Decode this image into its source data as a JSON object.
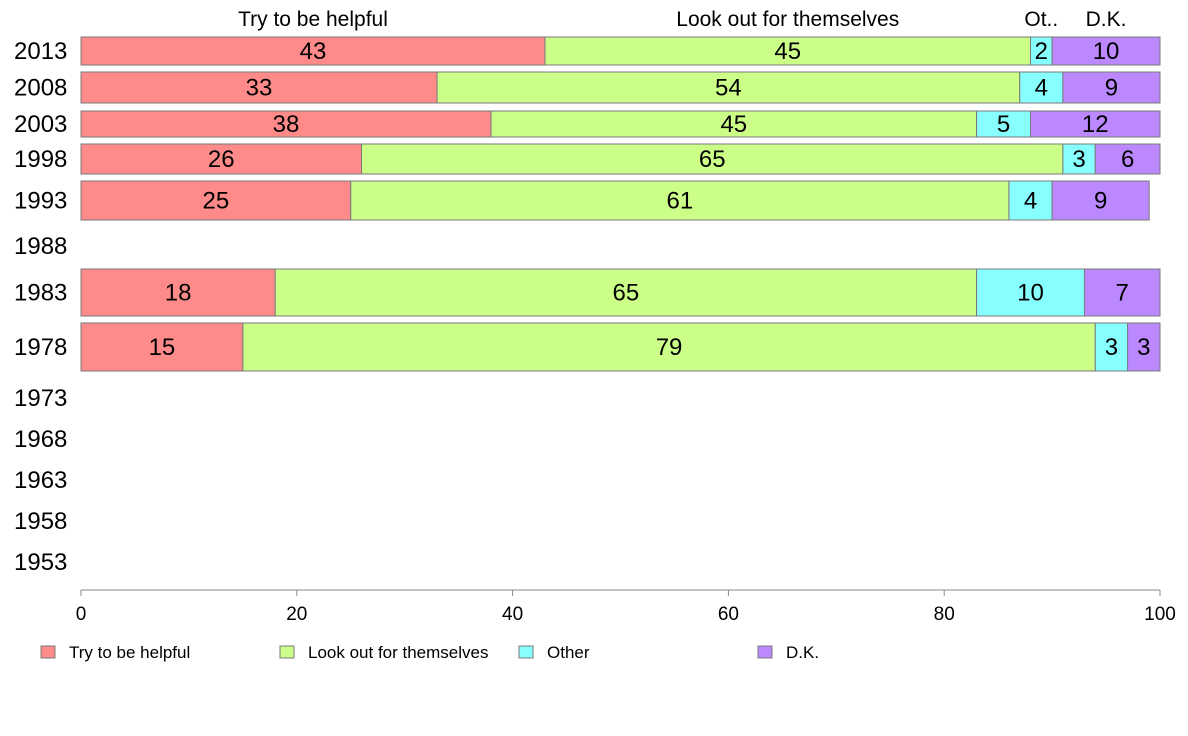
{
  "chart_data": {
    "type": "bar",
    "orientation": "horizontal",
    "stacked": true,
    "xlim": [
      0,
      100
    ],
    "x_ticks": [
      "0",
      "20",
      "40",
      "60",
      "80",
      "100"
    ],
    "column_headers": [
      "Try to be helpful",
      "Look out for themselves",
      "Ot..",
      "D.K."
    ],
    "categories": [
      "2013",
      "2008",
      "2003",
      "1998",
      "1993",
      "1988",
      "1983",
      "1978",
      "1973",
      "1968",
      "1963",
      "1958",
      "1953"
    ],
    "series": [
      {
        "name": "Try to be helpful",
        "color": "#ff8a8a",
        "values": [
          43,
          33,
          38,
          26,
          25,
          null,
          18,
          15,
          null,
          null,
          null,
          null,
          null
        ]
      },
      {
        "name": "Look out for themselves",
        "color": "#ccff88",
        "values": [
          45,
          54,
          45,
          65,
          61,
          null,
          65,
          79,
          null,
          null,
          null,
          null,
          null
        ]
      },
      {
        "name": "Other",
        "color": "#88ffff",
        "values": [
          2,
          4,
          5,
          3,
          4,
          null,
          10,
          3,
          null,
          null,
          null,
          null,
          null
        ]
      },
      {
        "name": "D.K.",
        "color": "#bb88ff",
        "values": [
          10,
          9,
          12,
          6,
          9,
          null,
          7,
          3,
          null,
          null,
          null,
          null,
          null
        ]
      }
    ],
    "legend_position": "bottom"
  }
}
